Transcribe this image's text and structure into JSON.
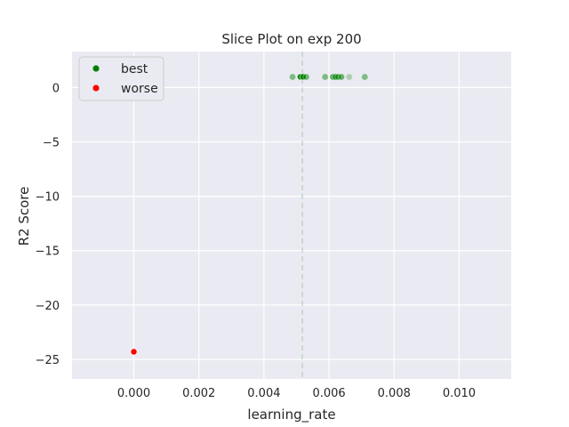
{
  "chart_data": {
    "type": "scatter",
    "title": "Slice Plot on exp 200",
    "xlabel": "learning_rate",
    "ylabel": "R2 Score",
    "xlim": [
      -0.0019,
      0.0116
    ],
    "ylim": [
      -26.8,
      3.3
    ],
    "xticks": [
      0.0,
      0.002,
      0.004,
      0.006,
      0.008,
      0.01
    ],
    "xtick_labels": [
      "0.000",
      "0.002",
      "0.004",
      "0.006",
      "0.008",
      "0.010"
    ],
    "yticks": [
      0,
      -5,
      -10,
      -15,
      -20,
      -25
    ],
    "ytick_labels": [
      "0",
      "−5",
      "−10",
      "−15",
      "−20",
      "−25"
    ],
    "grid": true,
    "background": "#eaeaf2",
    "legend": {
      "placement": "top-left",
      "entries": [
        {
          "label": "best",
          "color": "#008000"
        },
        {
          "label": "worse",
          "color": "#ff0000"
        }
      ]
    },
    "reference_line": {
      "orientation": "vertical",
      "x": 0.00518,
      "style": "dashed",
      "color": "#8fbc8f"
    },
    "series": [
      {
        "color": "#008000",
        "points": [
          {
            "x": 0.00488,
            "y": 0.97,
            "opacity": 0.45
          },
          {
            "x": 0.00512,
            "y": 0.98,
            "opacity": 1.0
          },
          {
            "x": 0.0052,
            "y": 0.98,
            "opacity": 0.9
          },
          {
            "x": 0.0053,
            "y": 0.97,
            "opacity": 0.5
          },
          {
            "x": 0.00588,
            "y": 0.97,
            "opacity": 0.45
          },
          {
            "x": 0.00612,
            "y": 0.97,
            "opacity": 0.6
          },
          {
            "x": 0.0062,
            "y": 0.97,
            "opacity": 0.7
          },
          {
            "x": 0.00628,
            "y": 0.97,
            "opacity": 0.6
          },
          {
            "x": 0.00638,
            "y": 0.97,
            "opacity": 0.55
          },
          {
            "x": 0.00662,
            "y": 0.97,
            "opacity": 0.25
          },
          {
            "x": 0.0071,
            "y": 0.97,
            "opacity": 0.45
          }
        ]
      },
      {
        "color": "#ff0000",
        "points": [
          {
            "x": 0.0,
            "y": -24.3,
            "opacity": 1.0
          }
        ]
      }
    ]
  }
}
